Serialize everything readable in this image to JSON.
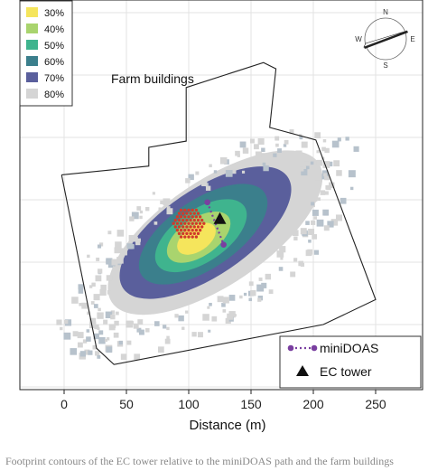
{
  "chart_data": {
    "type": "heatmap",
    "title": "",
    "xlabel": "Distance (m)",
    "ylabel": "",
    "xlim": [
      -45,
      285
    ],
    "x_ticks": [
      0,
      50,
      100,
      150,
      200,
      250
    ],
    "grid": true,
    "footprint_legend": {
      "title": "",
      "placement": "top-left",
      "entries": [
        {
          "label": "30%",
          "color": "#f5e55c"
        },
        {
          "label": "40%",
          "color": "#a9d46e"
        },
        {
          "label": "50%",
          "color": "#3fb48e"
        },
        {
          "label": "60%",
          "color": "#3b7f8c"
        },
        {
          "label": "70%",
          "color": "#5a5f9c"
        },
        {
          "label": "80%",
          "color": "#d5d5d5"
        }
      ]
    },
    "annotations": [
      {
        "text": "Farm buildings"
      }
    ],
    "point_legend": {
      "placement": "bottom-right",
      "entries": [
        {
          "label": "miniDOAS",
          "marker": "dotted-line-dots",
          "color": "#7a3fa0"
        },
        {
          "label": "EC tower",
          "marker": "triangle",
          "color": "#111111"
        }
      ]
    },
    "instruments": {
      "miniDOAS_path": [
        [
          115,
          48
        ],
        [
          128,
          14
        ]
      ],
      "ec_tower": [
        125,
        35
      ],
      "source_cluster_center": [
        100,
        31
      ]
    },
    "compass": {
      "labels": [
        "N",
        "E",
        "S",
        "W"
      ]
    }
  },
  "caption": {
    "text": "Footprint contours of the EC tower relative to the miniDOAS path and the farm buildings"
  }
}
